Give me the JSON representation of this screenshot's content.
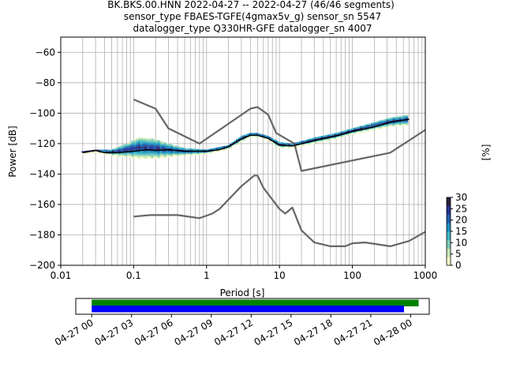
{
  "title_lines": [
    "BK.BKS.00.HNN   2022-04-27 -- 2022-04-27  (46/46 segments)",
    "sensor_type FBAES-TGFE(4gmax5v_g) sensor_sn 5547",
    "datalogger_type Q330HR-GFE datalogger_sn 4007"
  ],
  "chart_data": [
    {
      "type": "heatmap",
      "xlabel": "Period [s]",
      "ylabel": "Power [dB]",
      "x_scale": "log",
      "xlim": [
        0.01,
        1000
      ],
      "ylim": [
        -200,
        -50
      ],
      "x_ticks": [
        0.01,
        0.1,
        1,
        10,
        100,
        1000
      ],
      "x_tick_labels": [
        "0.01",
        "0.1",
        "1",
        "10",
        "100",
        "1000"
      ],
      "y_ticks": [
        -200,
        -180,
        -160,
        -140,
        -120,
        -100,
        -80,
        -60
      ],
      "y_tick_labels": [
        "−200",
        "−180",
        "−160",
        "−140",
        "−120",
        "−100",
        "−80",
        "−60"
      ],
      "grid": true,
      "colorbar": {
        "label": "[%]",
        "range": [
          0,
          30
        ],
        "ticks": [
          0,
          5,
          10,
          15,
          20,
          25,
          30
        ],
        "tick_labels": [
          "0",
          "5",
          "10",
          "15",
          "20",
          "25",
          "30"
        ],
        "colormap": [
          "#ffffcc",
          "#c7e9b4",
          "#7fcdbb",
          "#41b6c4",
          "#1d91c0",
          "#225ea8",
          "#253494",
          "#2d1e3e"
        ]
      },
      "series": [
        {
          "name": "",
          "color": "#666666",
          "points": [
            [
              0.1,
              -91
            ],
            [
              0.2,
              -97
            ],
            [
              0.3,
              -110
            ],
            [
              0.8,
              -120
            ],
            [
              4,
              -97
            ],
            [
              5,
              -96
            ],
            [
              7,
              -101
            ],
            [
              9,
              -113
            ],
            [
              16,
              -120
            ],
            [
              20,
              -138
            ],
            [
              330,
              -126
            ],
            [
              1000,
              -111
            ]
          ]
        },
        {
          "name": "",
          "color": "#666666",
          "points": [
            [
              0.1,
              -168
            ],
            [
              0.17,
              -167
            ],
            [
              0.4,
              -167
            ],
            [
              0.8,
              -169
            ],
            [
              1.2,
              -166
            ],
            [
              1.5,
              -163
            ],
            [
              3,
              -148
            ],
            [
              4.5,
              -141
            ],
            [
              5,
              -141
            ],
            [
              6,
              -149
            ],
            [
              10,
              -163
            ],
            [
              12,
              -166
            ],
            [
              15,
              -162
            ],
            [
              20,
              -177
            ],
            [
              30,
              -185
            ],
            [
              50,
              -187.5
            ],
            [
              80,
              -187.5
            ],
            [
              100,
              -185.5
            ],
            [
              150,
              -185
            ],
            [
              330,
              -187.5
            ],
            [
              600,
              -184
            ],
            [
              1000,
              -178
            ]
          ]
        },
        {
          "name": "",
          "color": "#000000",
          "points": [
            [
              0.02,
              -126
            ],
            [
              0.03,
              -124.5
            ],
            [
              0.04,
              -126
            ],
            [
              0.06,
              -126
            ],
            [
              0.1,
              -125
            ],
            [
              0.15,
              -124
            ],
            [
              0.2,
              -124.5
            ],
            [
              0.3,
              -124
            ],
            [
              0.5,
              -125
            ],
            [
              1,
              -125
            ],
            [
              1.5,
              -124
            ],
            [
              2,
              -122
            ],
            [
              3,
              -117
            ],
            [
              4,
              -114.5
            ],
            [
              5,
              -114.5
            ],
            [
              7,
              -116.5
            ],
            [
              10,
              -121
            ],
            [
              15,
              -121.5
            ],
            [
              30,
              -118
            ],
            [
              60,
              -115
            ],
            [
              100,
              -112
            ],
            [
              200,
              -109
            ],
            [
              330,
              -106
            ],
            [
              600,
              -104
            ]
          ]
        }
      ],
      "density_band": [
        [
          0.02,
          -127,
          -125
        ],
        [
          0.03,
          -126,
          -124
        ],
        [
          0.05,
          -128,
          -124
        ],
        [
          0.08,
          -129,
          -120
        ],
        [
          0.12,
          -130,
          -116
        ],
        [
          0.2,
          -130,
          -117
        ],
        [
          0.3,
          -129,
          -120
        ],
        [
          0.5,
          -128,
          -123
        ],
        [
          1,
          -127,
          -124
        ],
        [
          2,
          -124,
          -121
        ],
        [
          3,
          -119,
          -115
        ],
        [
          4,
          -116,
          -113
        ],
        [
          5,
          -116,
          -113
        ],
        [
          7,
          -118,
          -115
        ],
        [
          10,
          -123,
          -119
        ],
        [
          15,
          -123,
          -120
        ],
        [
          30,
          -120,
          -116
        ],
        [
          60,
          -117,
          -113
        ],
        [
          100,
          -114,
          -110
        ],
        [
          200,
          -111,
          -106
        ],
        [
          330,
          -109,
          -103
        ],
        [
          600,
          -108,
          -101
        ]
      ]
    },
    {
      "type": "bar",
      "x_tick_labels": [
        "04-27 00",
        "04-27 03",
        "04-27 06",
        "04-27 09",
        "04-27 12",
        "04-27 15",
        "04-27 18",
        "04-27 21",
        "04-28 00"
      ],
      "xlim_hours": [
        -1.2,
        25.4
      ],
      "series": [
        {
          "name": "",
          "color": "#008000",
          "start_hour": 0,
          "end_hour": 24.6
        },
        {
          "name": "",
          "color": "#0000ff",
          "start_hour": 0,
          "end_hour": 23.5
        }
      ]
    }
  ]
}
